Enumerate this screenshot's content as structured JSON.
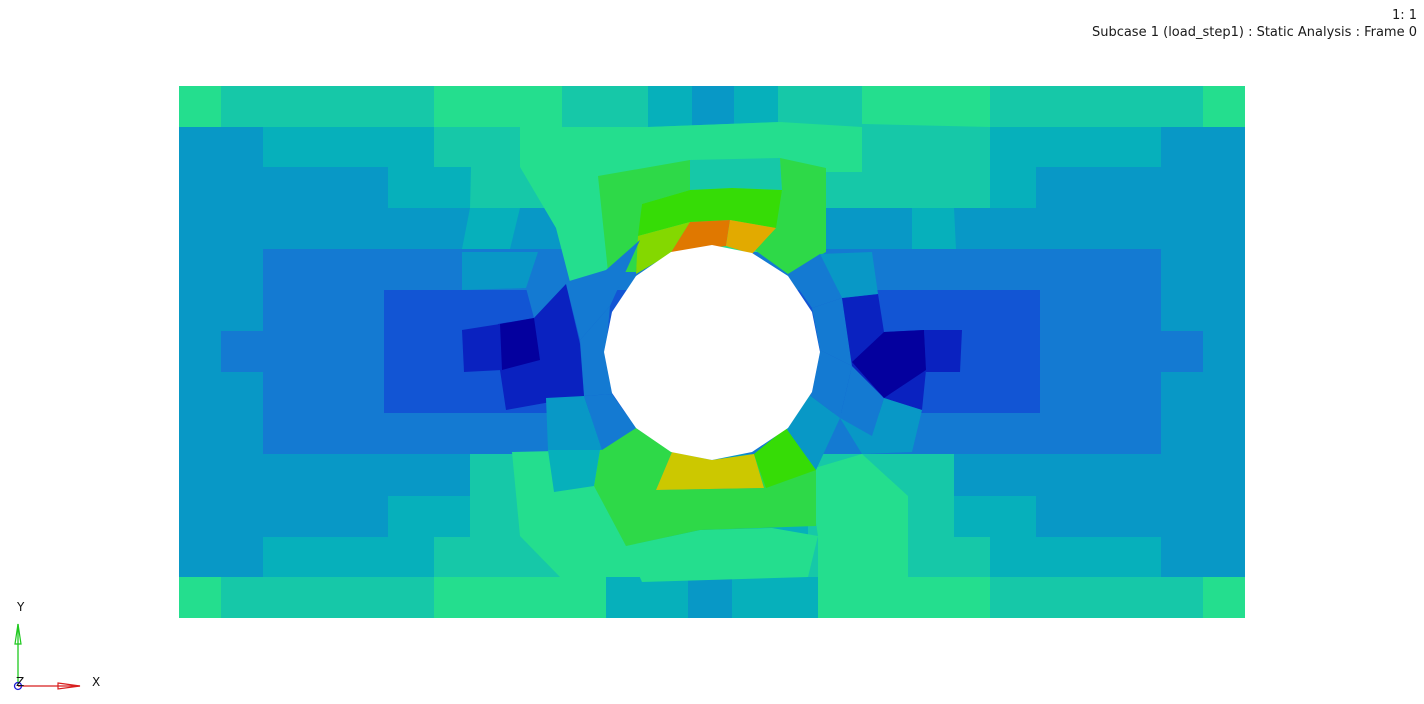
{
  "viewport": {
    "zoom_ratio": "1: 1",
    "subcase_title": "Subcase 1 (load_step1) : Static Analysis : Frame 0"
  },
  "triad": {
    "x_label": "X",
    "y_label": "Y",
    "z_label": "Z",
    "colors": {
      "x": "#d81e1e",
      "y": "#1ec81e",
      "z": "#1e1ed8"
    }
  },
  "contour": {
    "palette": {
      "c0": "#04009e",
      "c1": "#0a22c0",
      "c2": "#1255d4",
      "c3": "#147ad2",
      "c4": "#0898c6",
      "c5": "#06b0bb",
      "c6": "#16c8a8",
      "c7": "#24de8e",
      "c8": "#2ed948",
      "c9": "#36dc06",
      "c10": "#84d800",
      "c11": "#ccc800",
      "c12": "#e2aa00",
      "c13": "#e07800"
    }
  }
}
